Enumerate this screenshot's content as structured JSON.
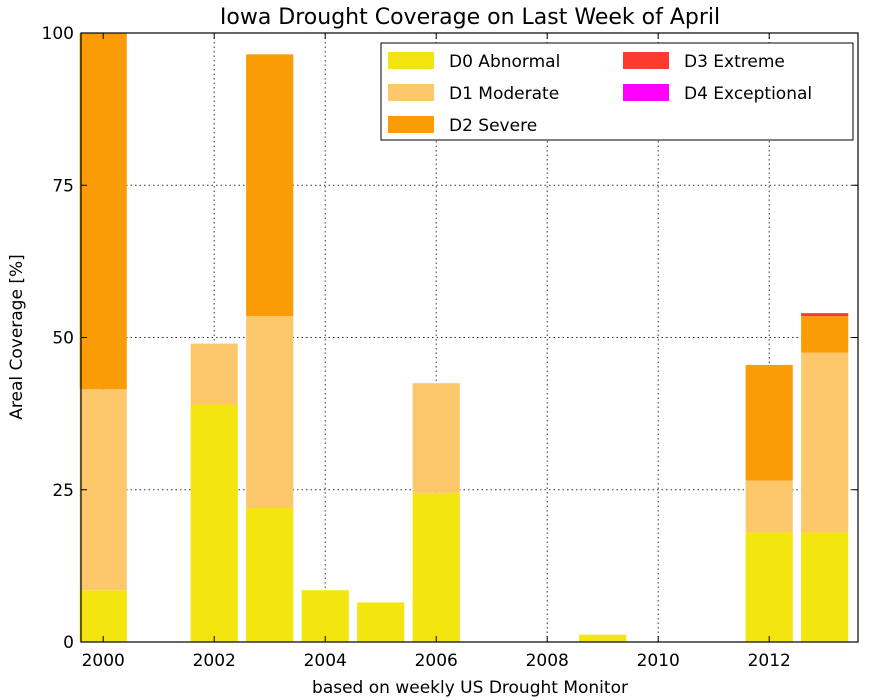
{
  "chart_data": {
    "type": "bar",
    "stacked": true,
    "title": "Iowa Drought Coverage on Last Week of April",
    "xlabel": "based on weekly US Drought Monitor",
    "ylabel": "Areal Coverage [%]",
    "ylim": [
      0,
      100
    ],
    "xlim": [
      1999.6,
      2013.6
    ],
    "yticks": [
      0,
      25,
      50,
      75,
      100
    ],
    "xticks": [
      2000,
      2002,
      2004,
      2006,
      2008,
      2010,
      2012
    ],
    "grid": true,
    "legend_position": "top-right",
    "categories": [
      2000,
      2001,
      2002,
      2003,
      2004,
      2005,
      2006,
      2007,
      2008,
      2009,
      2010,
      2011,
      2012,
      2013
    ],
    "series": [
      {
        "name": "D0 Abnormal",
        "color": "#f2e510",
        "values": [
          8.5,
          0,
          39,
          22,
          8.5,
          6.5,
          24.5,
          0,
          0,
          1.2,
          0,
          0,
          18,
          18
        ]
      },
      {
        "name": "D1 Moderate",
        "color": "#fdc86c",
        "values": [
          33,
          0,
          10,
          31.5,
          0,
          0,
          18,
          0,
          0,
          0,
          0,
          0,
          8.5,
          29.5
        ]
      },
      {
        "name": "D2 Severe",
        "color": "#fa9c06",
        "values": [
          58.5,
          0,
          0,
          43,
          0,
          0,
          0,
          0,
          0,
          0,
          0,
          0,
          19,
          6
        ]
      },
      {
        "name": "D3 Extreme",
        "color": "#fc3a2e",
        "values": [
          0,
          0,
          0,
          0,
          0,
          0,
          0,
          0,
          0,
          0,
          0,
          0,
          0,
          0.5
        ]
      },
      {
        "name": "D4 Exceptional",
        "color": "#ff00ff",
        "values": [
          0,
          0,
          0,
          0,
          0,
          0,
          0,
          0,
          0,
          0,
          0,
          0,
          0,
          0
        ]
      }
    ]
  }
}
